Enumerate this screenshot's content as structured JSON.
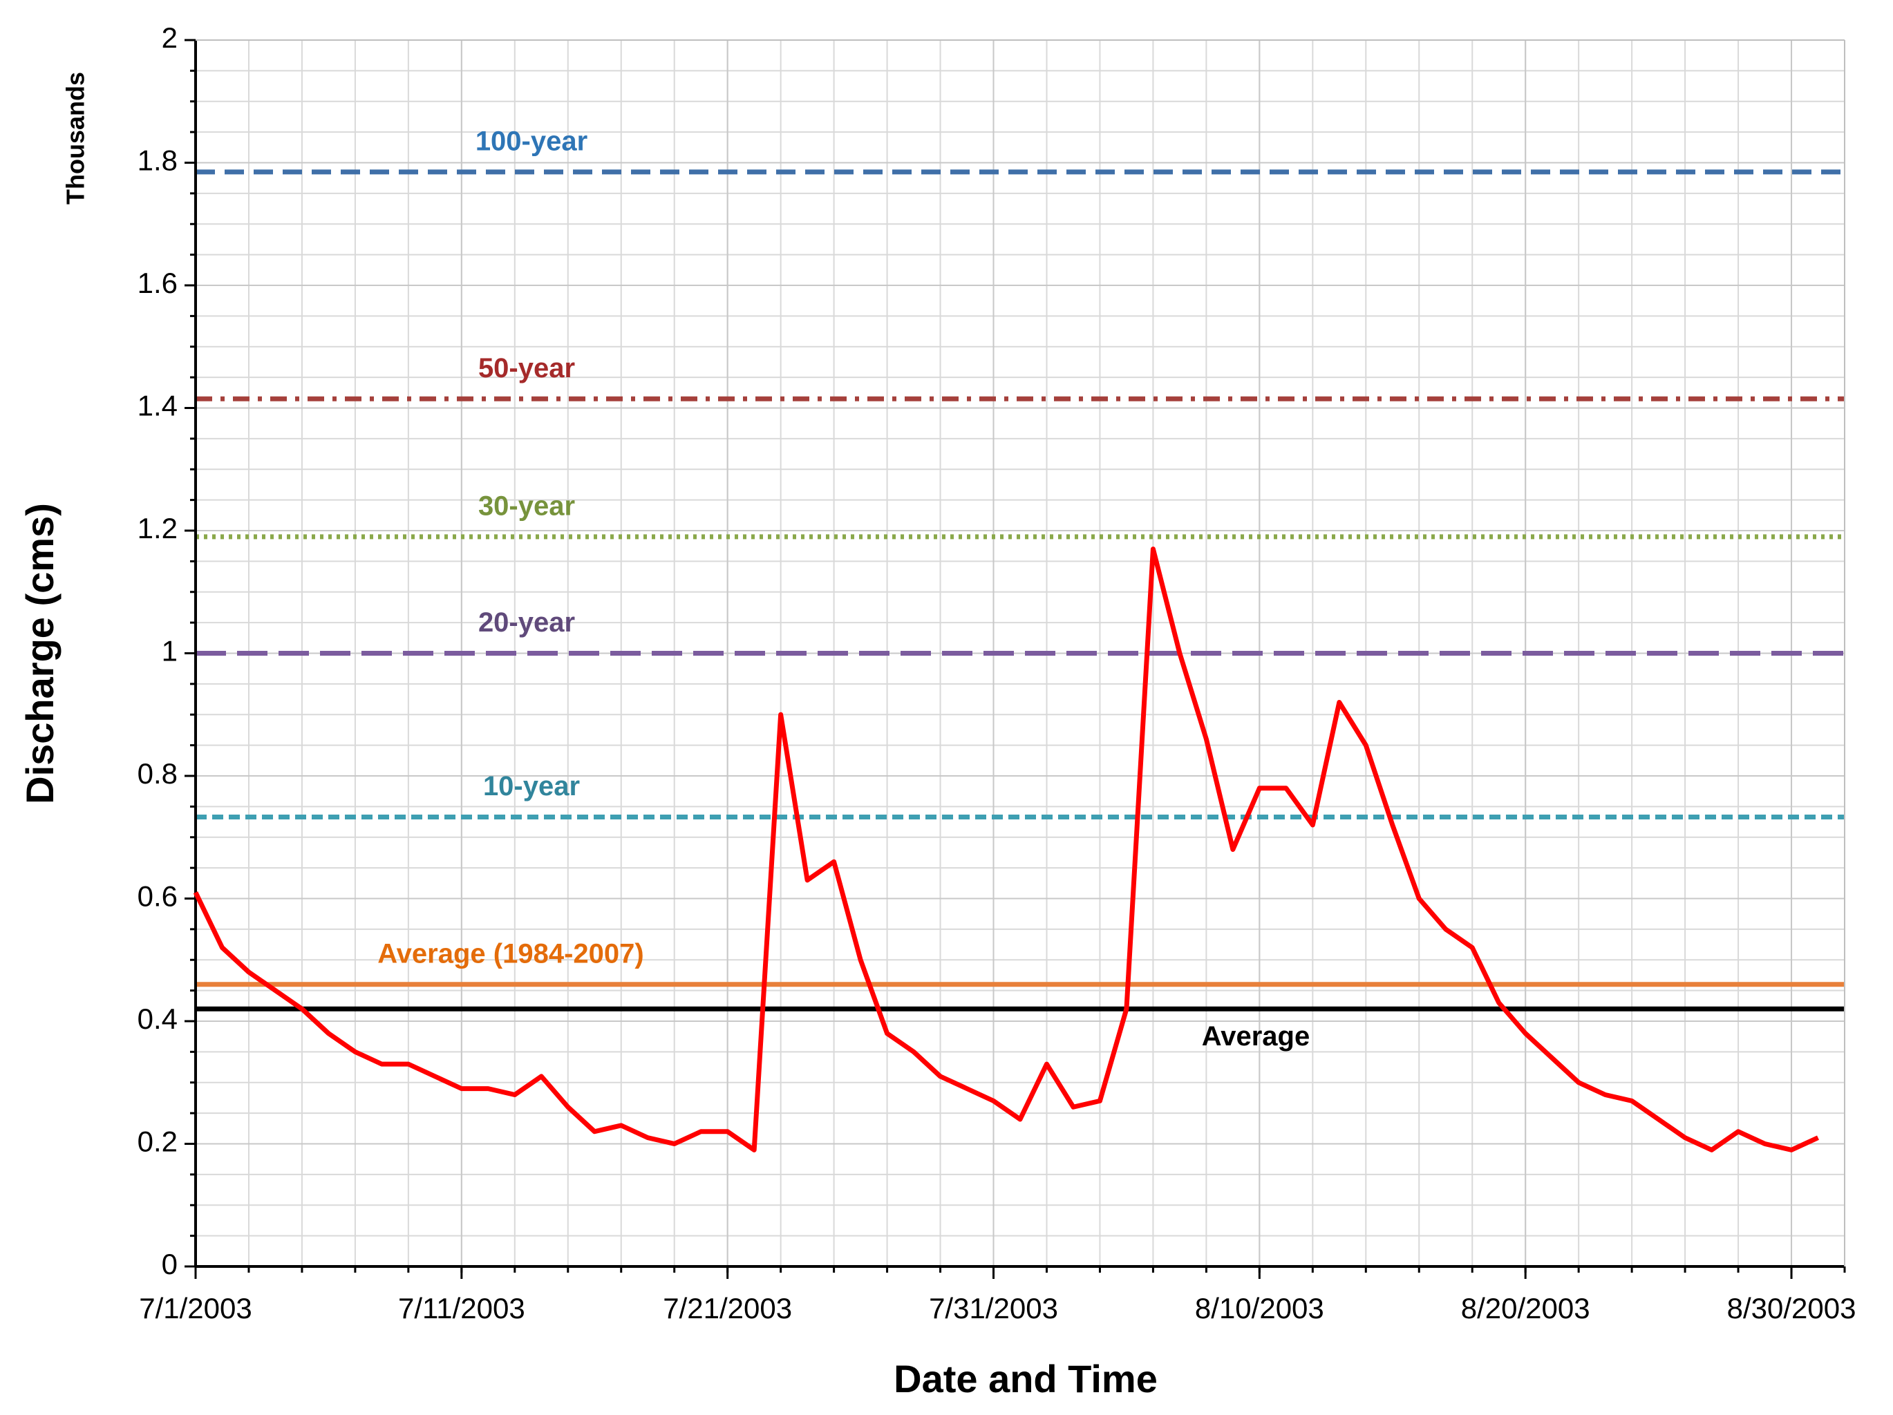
{
  "chart_data": {
    "type": "line",
    "x_label": "Date and Time",
    "y_label": "Discharge (cms)",
    "y_unit_label": "Thousands",
    "x": [
      "7/1/2003",
      "7/2/2003",
      "7/3/2003",
      "7/4/2003",
      "7/5/2003",
      "7/6/2003",
      "7/7/2003",
      "7/8/2003",
      "7/9/2003",
      "7/10/2003",
      "7/11/2003",
      "7/12/2003",
      "7/13/2003",
      "7/14/2003",
      "7/15/2003",
      "7/16/2003",
      "7/17/2003",
      "7/18/2003",
      "7/19/2003",
      "7/20/2003",
      "7/21/2003",
      "7/22/2003",
      "7/23/2003",
      "7/24/2003",
      "7/25/2003",
      "7/26/2003",
      "7/27/2003",
      "7/28/2003",
      "7/29/2003",
      "7/30/2003",
      "7/31/2003",
      "8/1/2003",
      "8/2/2003",
      "8/3/2003",
      "8/4/2003",
      "8/5/2003",
      "8/6/2003",
      "8/7/2003",
      "8/8/2003",
      "8/9/2003",
      "8/10/2003",
      "8/11/2003",
      "8/12/2003",
      "8/13/2003",
      "8/14/2003",
      "8/15/2003",
      "8/16/2003",
      "8/17/2003",
      "8/18/2003",
      "8/19/2003",
      "8/20/2003",
      "8/21/2003",
      "8/22/2003",
      "8/23/2003",
      "8/24/2003",
      "8/25/2003",
      "8/26/2003",
      "8/27/2003",
      "8/28/2003",
      "8/29/2003",
      "8/30/2003",
      "8/31/2003"
    ],
    "values": [
      0.61,
      0.52,
      0.48,
      0.45,
      0.42,
      0.38,
      0.35,
      0.33,
      0.33,
      0.31,
      0.29,
      0.29,
      0.28,
      0.31,
      0.26,
      0.22,
      0.23,
      0.21,
      0.2,
      0.22,
      0.22,
      0.19,
      0.9,
      0.63,
      0.66,
      0.5,
      0.38,
      0.35,
      0.31,
      0.29,
      0.27,
      0.24,
      0.33,
      0.26,
      0.27,
      0.42,
      1.17,
      1.0,
      0.86,
      0.68,
      0.78,
      0.78,
      0.72,
      0.92,
      0.85,
      0.72,
      0.6,
      0.55,
      0.52,
      0.43,
      0.38,
      0.34,
      0.3,
      0.28,
      0.27,
      0.24,
      0.21,
      0.19,
      0.22,
      0.2,
      0.19,
      0.21
    ],
    "color": "#ff0000",
    "xlim": [
      "7/1/2003",
      "9/1/2003"
    ],
    "xticks": [
      "7/1/2003",
      "7/11/2003",
      "7/21/2003",
      "7/31/2003",
      "8/10/2003",
      "8/20/2003",
      "8/30/2003"
    ],
    "ylim": [
      0,
      2
    ],
    "yticks": [
      0,
      0.2,
      0.4,
      0.6,
      0.8,
      1,
      1.2,
      1.4,
      1.6,
      1.8,
      2
    ],
    "grid": true,
    "reference_lines": [
      {
        "label": "100-year",
        "value": 1.785,
        "color": "#3f6fa8",
        "label_color": "#2e75b6",
        "style": "dashed"
      },
      {
        "label": "50-year",
        "value": 1.415,
        "color": "#a5403b",
        "label_color": "#a52a2a",
        "style": "dashdot"
      },
      {
        "label": "30-year",
        "value": 1.19,
        "color": "#8aa84a",
        "label_color": "#77933c",
        "style": "dotted"
      },
      {
        "label": "20-year",
        "value": 1.0,
        "color": "#7b5c9e",
        "label_color": "#604a7b",
        "style": "longdash"
      },
      {
        "label": "10-year",
        "value": 0.733,
        "color": "#3e9fb2",
        "label_color": "#31859c",
        "style": "shortdash"
      },
      {
        "label": "Average (1984-2007)",
        "value": 0.46,
        "color": "#e8803a",
        "label_color": "#e46c0a",
        "style": "solid"
      },
      {
        "label": "Average",
        "value": 0.42,
        "color": "#000000",
        "label_color": "#000000",
        "style": "solid"
      }
    ]
  }
}
